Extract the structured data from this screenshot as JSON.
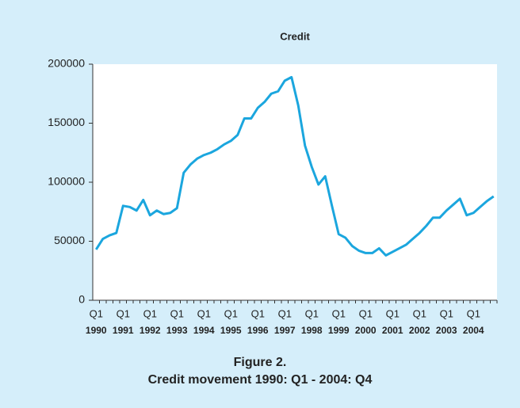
{
  "chart_data": {
    "type": "line",
    "title": "Credit",
    "figure_label": "Figure 2.",
    "caption": "Credit movement 1990: Q1 - 2004: Q4",
    "categories": [
      "Q1",
      null,
      null,
      null,
      "Q1",
      null,
      null,
      null,
      "Q1",
      null,
      null,
      null,
      "Q1",
      null,
      null,
      null,
      "Q1",
      null,
      null,
      null,
      "Q1",
      null,
      null,
      null,
      "Q1",
      null,
      null,
      null,
      "Q1",
      null,
      null,
      null,
      "Q1",
      null,
      null,
      null,
      "Q1",
      null,
      null,
      null,
      "Q1",
      null,
      null,
      null,
      "Q1",
      null,
      null,
      null,
      "Q1",
      null,
      null,
      null,
      "Q1",
      null,
      null,
      null,
      "Q1",
      null,
      null,
      null
    ],
    "years": [
      "1990",
      "1991",
      "1992",
      "1993",
      "1994",
      "1995",
      "1996",
      "1997",
      "1998",
      "1999",
      "2000",
      "2001",
      "2002",
      "2003",
      "2004"
    ],
    "series": [
      {
        "name": "Credit",
        "color": "#1ba6de",
        "values": [
          43000,
          52000,
          55000,
          57000,
          80000,
          79000,
          76000,
          85000,
          72000,
          76000,
          73000,
          74000,
          78000,
          108000,
          115000,
          120000,
          123000,
          125000,
          128000,
          132000,
          135000,
          140000,
          154000,
          154000,
          163000,
          168000,
          175000,
          177000,
          186000,
          189000,
          165000,
          131000,
          113000,
          98000,
          105000,
          80000,
          56000,
          53000,
          46000,
          42000,
          40000,
          40000,
          44000,
          38000,
          41000,
          44000,
          47000,
          52000,
          57000,
          63000,
          70000,
          70000,
          76000,
          81000,
          86000,
          72000,
          74000,
          79000,
          84000,
          88000
        ]
      }
    ],
    "ylim": [
      0,
      200000
    ],
    "yticks": [
      0,
      50000,
      100000,
      150000,
      200000
    ]
  }
}
